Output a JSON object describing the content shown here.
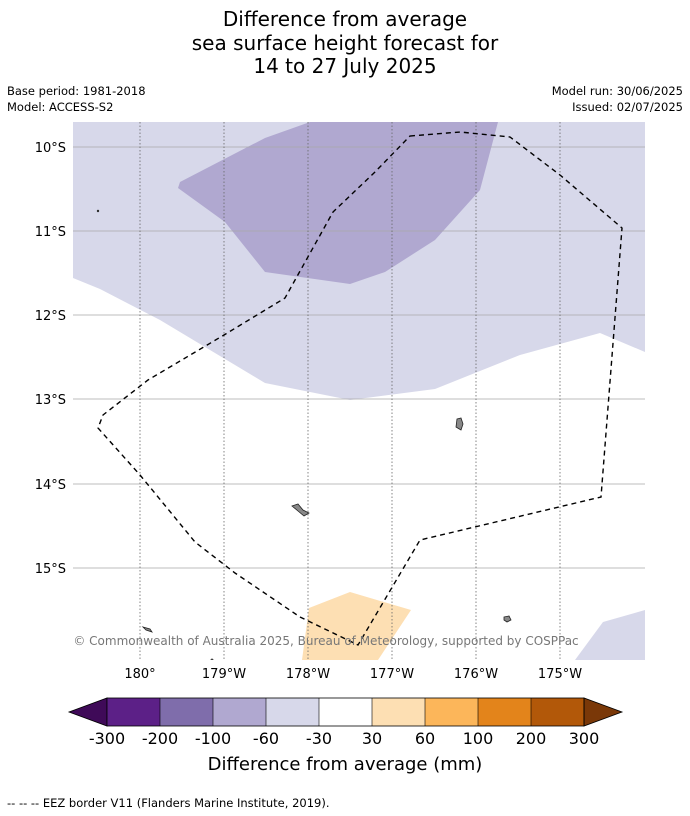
{
  "title": {
    "line1": "Difference from average",
    "line2": "sea surface height forecast for",
    "line3": "14 to 27 July 2025"
  },
  "meta": {
    "base_period": "Base period: 1981-2018",
    "model": "Model: ACCESS-S2",
    "model_run": "Model run: 30/06/2025",
    "issued": "Issued: 02/07/2025"
  },
  "map": {
    "lat_labels": [
      "10°S",
      "11°S",
      "12°S",
      "13°S",
      "14°S",
      "15°S"
    ],
    "lon_labels": [
      "180°",
      "179°W",
      "178°W",
      "177°W",
      "176°W",
      "175°W"
    ],
    "copyright": "© Commonwealth of Australia 2025, Bureau of Meteorology, supported by COSPPac"
  },
  "colorbar": {
    "ticks": [
      "-300",
      "-200",
      "-100",
      "-60",
      "-30",
      "30",
      "60",
      "100",
      "200",
      "300"
    ],
    "colors": [
      "#3f0a58",
      "#5c2087",
      "#7f6dab",
      "#b0a8d0",
      "#d7d8ea",
      "#ffffff",
      "#fddfb3",
      "#fcb65a",
      "#e3841b",
      "#b25809",
      "#7a3808"
    ],
    "label": "Difference from average (mm)"
  },
  "legend": {
    "eez": "--  --  -- EEZ border V11 (Flanders Marine Institute, 2019)."
  }
}
